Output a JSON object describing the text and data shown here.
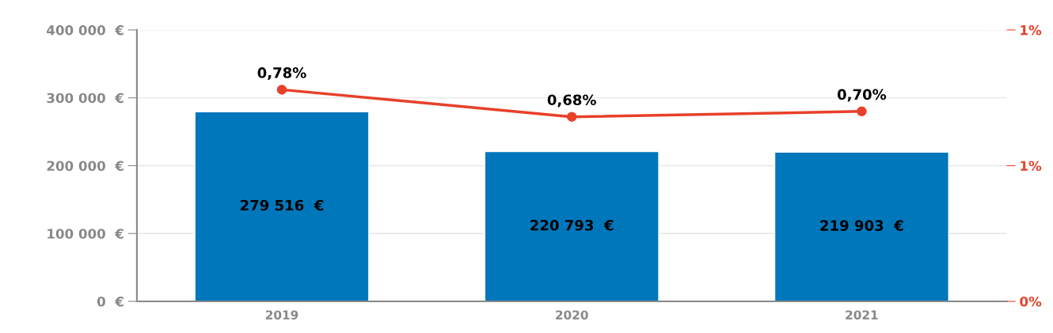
{
  "chart_data": {
    "type": "bar",
    "categories": [
      "2019",
      "2020",
      "2021"
    ],
    "series": [
      {
        "color": "#0077bb",
        "values": [
          279516,
          220793,
          219903
        ],
        "value_labels": [
          "279 516  €",
          "220 793  €",
          "219 903  €"
        ]
      },
      {
        "type": "line",
        "axis": "y2",
        "color": "#e8402a",
        "values": [
          0.78,
          0.68,
          0.7
        ],
        "value_labels": [
          "0,78%",
          "0,68%",
          "0,70%"
        ],
        "marker": "circle",
        "line_style": "solid"
      }
    ],
    "ylim": [
      0,
      400000
    ],
    "yticks": [
      {
        "value": 0,
        "label": "0  €"
      },
      {
        "value": 100000,
        "label": "100 000  €"
      },
      {
        "value": 200000,
        "label": "200 000  €"
      },
      {
        "value": 300000,
        "label": "300 000  €"
      },
      {
        "value": 400000,
        "label": "400 000  €"
      }
    ],
    "y2lim": [
      0,
      1
    ],
    "y2ticks": [
      {
        "value": 0,
        "label": "0%"
      },
      {
        "value": 0.5,
        "label": "1%"
      },
      {
        "value": 1,
        "label": "1%"
      }
    ],
    "grid": "y"
  }
}
